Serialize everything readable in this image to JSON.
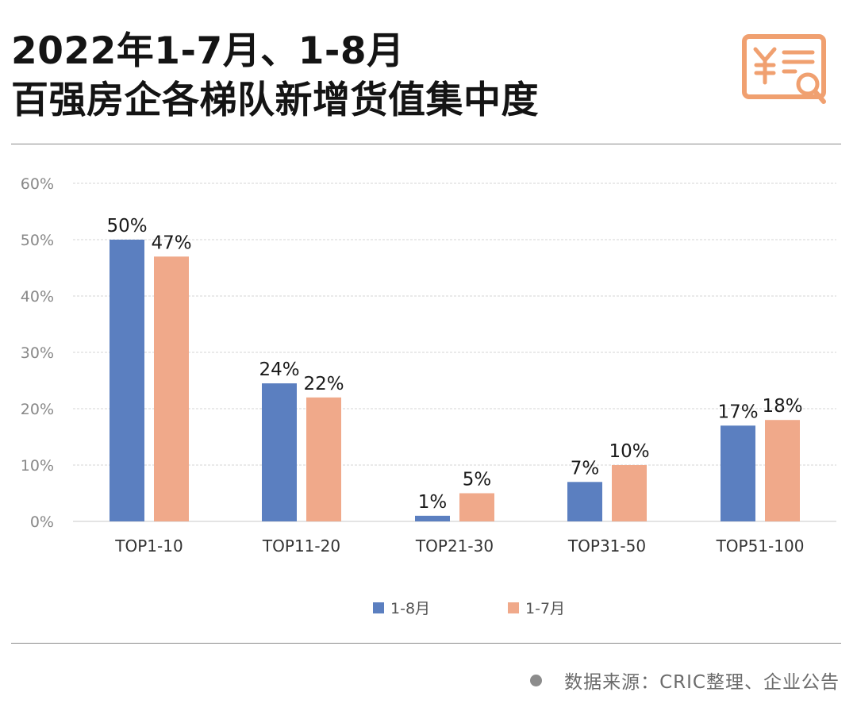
{
  "title": {
    "line1": "2022年1-7月、1-8月",
    "line2": "百强房企各梯队新增货值集中度"
  },
  "source": {
    "text": "数据来源：CRIC整理、企业公告"
  },
  "colors": {
    "series_1_8": "#5b7fc0",
    "series_1_7": "#f0a98a",
    "accent": "#f0a070"
  },
  "icons": {
    "logo": "receipt-yuan-search-icon"
  },
  "chart_data": {
    "type": "bar",
    "categories": [
      "TOP1-10",
      "TOP11-20",
      "TOP21-30",
      "TOP31-50",
      "TOP51-100"
    ],
    "series": [
      {
        "name": "1-8月",
        "values": [
          50,
          24.5,
          1,
          7,
          17
        ]
      },
      {
        "name": "1-7月",
        "values": [
          47,
          22,
          5,
          10,
          18
        ]
      }
    ],
    "data_labels": [
      [
        "50%",
        "24%",
        "1%",
        "7%",
        "17%"
      ],
      [
        "47%",
        "22%",
        "5%",
        "10%",
        "18%"
      ]
    ],
    "y_ticks": [
      "0%",
      "10%",
      "20%",
      "30%",
      "40%",
      "50%",
      "60%"
    ],
    "ylim": [
      0,
      60
    ],
    "grid": true,
    "legend_position": "bottom-center",
    "title": "",
    "xlabel": "",
    "ylabel": ""
  }
}
